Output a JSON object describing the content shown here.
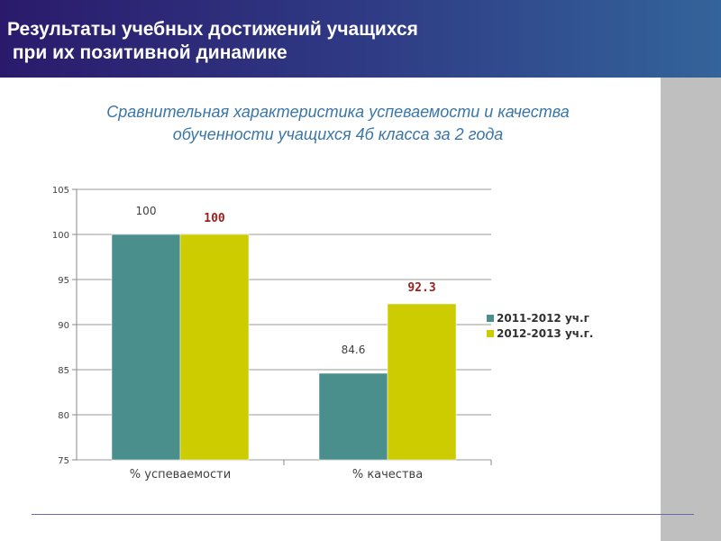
{
  "header": {
    "title": "Результаты учебных достижений учащихся\n при их позитивной динамике"
  },
  "chart_data": {
    "type": "bar",
    "title": "Сравнительная характеристика успеваемости и качества обученности учащихся 4б класса за 2 года",
    "categories": [
      "% успеваемости",
      "% качества"
    ],
    "series": [
      {
        "name": "2011-2012 уч.г",
        "color": "#4a8f8c",
        "values": [
          100,
          84.6
        ],
        "labels": [
          "100",
          "84.6"
        ],
        "label_color": "#404040"
      },
      {
        "name": "2012-2013 уч.г.",
        "color": "#cccc00",
        "values": [
          100,
          92.3
        ],
        "labels": [
          "100",
          "92.3"
        ],
        "label_color": "#a02020"
      }
    ],
    "ylim": [
      75,
      105
    ],
    "yticks": [
      "75",
      "80",
      "85",
      "90",
      "95",
      "100",
      "105"
    ],
    "grid": true,
    "legend": "right"
  }
}
